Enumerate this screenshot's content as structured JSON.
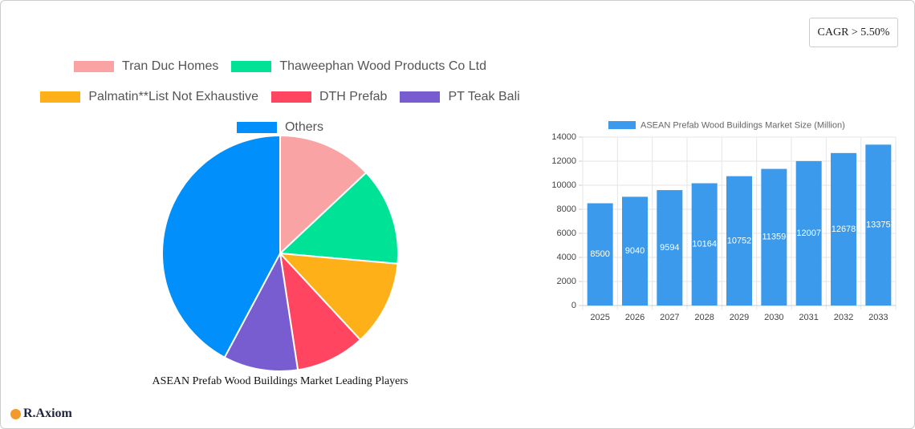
{
  "badge": "CAGR > 5.50%",
  "brand": "R.Axiom",
  "chart_data": [
    {
      "type": "pie",
      "title": "ASEAN Prefab Wood Buildings Market Leading Players",
      "categories": [
        "Tran Duc Homes",
        "Thaweephan Wood Products Co  Ltd",
        "Palmatin**List Not Exhaustive",
        "DTH Prefab",
        "PT Teak Bali",
        "Others"
      ],
      "values": [
        13,
        13.4,
        11.7,
        9.5,
        10.2,
        42.2
      ],
      "colors": [
        "#f9a3a4",
        "#00e396",
        "#feb019",
        "#ff4560",
        "#775dd0",
        "#008ffb"
      ]
    },
    {
      "type": "bar",
      "categories": [
        "2025",
        "2026",
        "2027",
        "2028",
        "2029",
        "2030",
        "2031",
        "2032",
        "2033"
      ],
      "series": [
        {
          "name": "ASEAN Prefab Wood Buildings Market Size (Million)",
          "color": "#3b9aeb",
          "values": [
            8500,
            9040,
            9594,
            10164,
            10752,
            11359,
            12007,
            12678,
            13375
          ]
        }
      ],
      "ylim": [
        0,
        14000
      ],
      "yticks": [
        0,
        2000,
        4000,
        6000,
        8000,
        10000,
        12000,
        14000
      ],
      "grid": true
    }
  ]
}
